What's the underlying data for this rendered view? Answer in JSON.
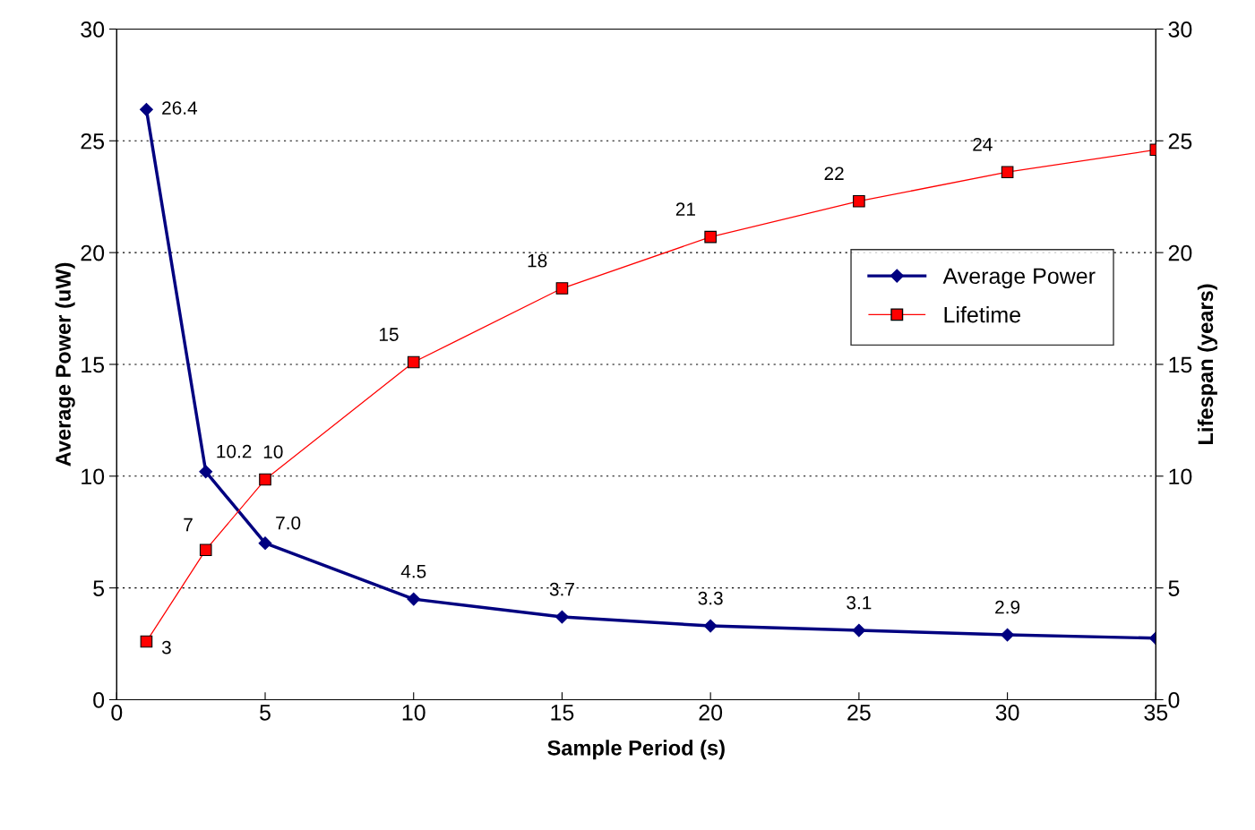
{
  "chart_data": {
    "type": "line",
    "xlabel": "Sample Period (s)",
    "ylabel": "Average Power (uW)",
    "y2label": "Lifespan (years)",
    "x": [
      1,
      3,
      5,
      10,
      15,
      20,
      25,
      30,
      35
    ],
    "series": [
      {
        "name": "Average Power",
        "color": "#000080",
        "marker": "diamond",
        "values": [
          26.4,
          10.2,
          7.0,
          4.5,
          3.7,
          3.3,
          3.1,
          2.9,
          2.75
        ],
        "value_labels": [
          "26.4",
          "10.2",
          "7.0",
          "4.5",
          "3.7",
          "3.3",
          "3.1",
          "2.9",
          null
        ]
      },
      {
        "name": "Lifetime",
        "color": "#ff0000",
        "marker": "square",
        "axis": "y2",
        "values": [
          2.6,
          6.7,
          9.85,
          15.1,
          18.4,
          20.7,
          22.3,
          23.6,
          24.6
        ],
        "value_labels": [
          "3",
          "7",
          "10",
          "15",
          "18",
          "21",
          "22",
          "24",
          null
        ]
      }
    ],
    "xlim": [
      0,
      35
    ],
    "xticks": [
      0,
      5,
      10,
      15,
      20,
      25,
      30,
      35
    ],
    "ylim": [
      0,
      30
    ],
    "yticks": [
      0,
      5,
      10,
      15,
      20,
      25,
      30
    ],
    "y2lim": [
      0,
      30
    ],
    "y2ticks": [
      0,
      5,
      10,
      15,
      20,
      25,
      30
    ],
    "grid": "y",
    "legend": "right"
  }
}
